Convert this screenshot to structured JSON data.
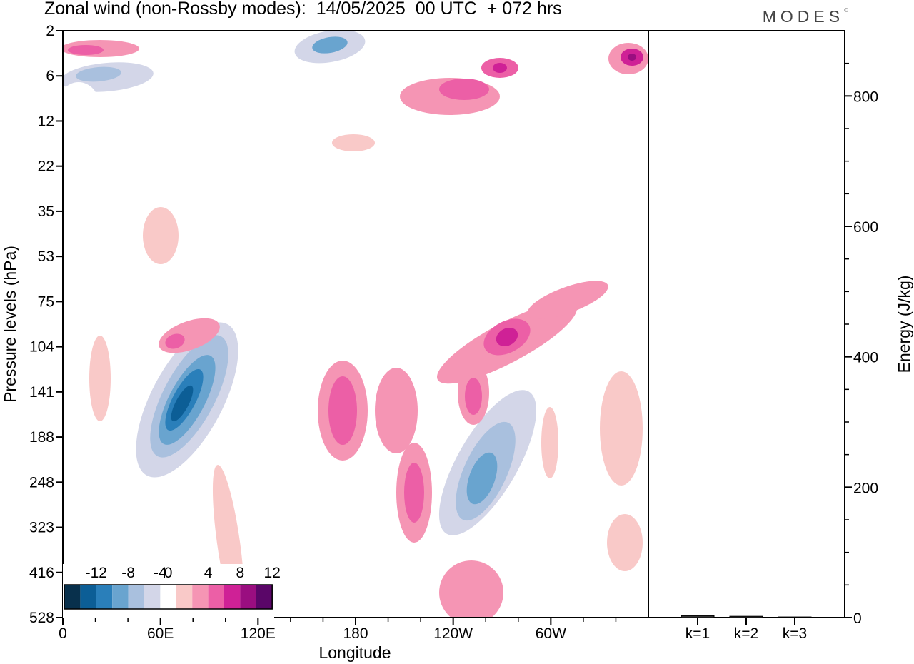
{
  "header": {
    "title": "Zonal wind (non-Rossby modes):  14/05/2025  00 UTC  + 072 hrs",
    "brand": "MODES",
    "brand_mark": "©"
  },
  "colors": {
    "palette": [
      "#08304c",
      "#0c5e96",
      "#2a7fba",
      "#69a4cf",
      "#a9c0de",
      "#d3d6e8",
      "#ffffff",
      "#f9c9c8",
      "#f595b4",
      "#ec5fa6",
      "#cf2196",
      "#9a0e80",
      "#5a0668"
    ],
    "frame": "#000000"
  },
  "chart_data": [
    {
      "type": "heatmap",
      "title": "Zonal wind (non-Rossby modes):  14/05/2025  00 UTC  + 072 hrs",
      "xlabel": "Longitude",
      "ylabel": "Pressure levels (hPa)",
      "x_ticks": [
        "0",
        "60E",
        "120E",
        "180",
        "120W",
        "60W"
      ],
      "x_tick_values": [
        0,
        60,
        120,
        180,
        240,
        300
      ],
      "xlim": [
        0,
        360
      ],
      "y_ticks": [
        "2",
        "6",
        "12",
        "22",
        "35",
        "53",
        "75",
        "104",
        "141",
        "188",
        "248",
        "323",
        "416",
        "528"
      ],
      "y_scale": "model levels (pressure increasing downward)",
      "colorbar": {
        "tick_labels": [
          "-12",
          "-8",
          "-4",
          "0",
          "4",
          "8",
          "12"
        ],
        "levels": [
          -14,
          -12,
          -10,
          -8,
          -6,
          -4,
          -2,
          2,
          4,
          6,
          8,
          10,
          12,
          14
        ],
        "placement": "bottom-left inset"
      },
      "features": [
        {
          "name": "easterly core",
          "lon": 75,
          "level": "141-188",
          "value": -13
        },
        {
          "name": "easterly maximum",
          "lon": 245,
          "level": "248",
          "value": -10
        },
        {
          "name": "upper easterly",
          "lon": 160,
          "level": "2-6",
          "value": -9
        },
        {
          "name": "upper easterly",
          "lon": 20,
          "level": "6",
          "value": -7
        },
        {
          "name": "westerly maximum",
          "lon": 255,
          "level": "104",
          "value": 8
        },
        {
          "name": "westerly maximum",
          "lon": 345,
          "level": "2-6",
          "value": 9
        },
        {
          "name": "westerly maximum",
          "lon": 255,
          "level": "6",
          "value": 8
        },
        {
          "name": "westerly band",
          "lon": 170,
          "level": "141-188",
          "value": 5
        },
        {
          "name": "westerly band",
          "lon": 210,
          "level": "248",
          "value": 5
        }
      ]
    },
    {
      "type": "bar",
      "categories": [
        "k=1",
        "k=2",
        "k=3"
      ],
      "values": [
        3,
        2,
        1
      ],
      "ylabel": "Energy (J/kg)",
      "ylim": [
        0,
        900
      ],
      "y_ticks": [
        0,
        200,
        400,
        600,
        800
      ]
    }
  ]
}
